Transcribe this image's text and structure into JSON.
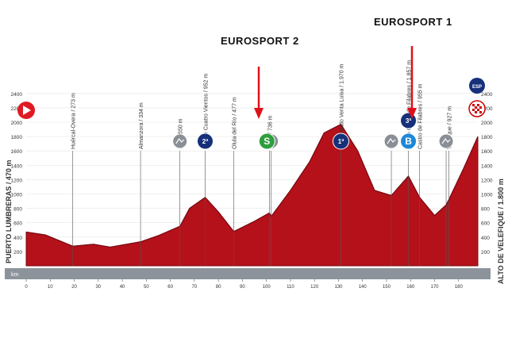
{
  "start": {
    "name": "PUERTO LUMBRERAS / 470 m"
  },
  "finish": {
    "name": "ALTO DE VELEFIQUE / 1.800 m"
  },
  "distance_axis": {
    "unit_label": "km",
    "ticks": [
      "0",
      "10",
      "20",
      "30",
      "40",
      "50",
      "60",
      "70",
      "80",
      "90",
      "100",
      "110",
      "120",
      "130",
      "140",
      "150",
      "160",
      "170",
      "180"
    ]
  },
  "altitude_axis": {
    "ticks": [
      "2400",
      "2200",
      "2000",
      "1800",
      "1600",
      "1400",
      "1200",
      "1000",
      "800",
      "600",
      "400",
      "200"
    ],
    "range_m": [
      0,
      2500
    ]
  },
  "waypoints": [
    {
      "km_label": "19,4",
      "name": "Huércal-Overa / 273 m"
    },
    {
      "km_label": "47,6",
      "name": "Almanzora / 334 m"
    },
    {
      "km_label": "64",
      "name": "Lijar / 550 m"
    },
    {
      "km_label": "74,5",
      "name": "Alto de Cuatro Vientos / 952 m"
    },
    {
      "km_label": "86,4",
      "name": "Olula del Río / 477 m"
    },
    {
      "km_label": "101,2",
      "name": "Tíjola / 736 m"
    },
    {
      "km_label": "102",
      "name": "688 m"
    },
    {
      "km_label": "131",
      "name": "Alto Collado Venta Luisa / 1.970 m"
    },
    {
      "km_label": "152",
      "name": "978 m"
    },
    {
      "km_label": "159,1",
      "name": "Alto de Castro de Filabres / 1.857 m"
    },
    {
      "km_label": "163,7",
      "name": "Castro de Filabres / 955 m"
    },
    {
      "km_label": "174,8",
      "name": "848 m"
    },
    {
      "km_label": "176",
      "name": "Velefique / 927 m"
    },
    {
      "km_label": "188",
      "name": ""
    }
  ],
  "badges": {
    "cat2": "2ª",
    "cat1": "1ª",
    "cat3": "3ª",
    "sprint": "S",
    "bonus": "B",
    "esp": "ESP"
  },
  "broadcast": {
    "eurosport2": "EUROSPORT 2",
    "eurosport1": "EUROSPORT 1"
  },
  "colors": {
    "profile": "#b5111b",
    "profile_dark": "#7a0a12",
    "badge_blue": "#16307a",
    "sprint_green": "#2e9e3e",
    "bonus_blue": "#1e88d8",
    "axis_bar": "#8c939b",
    "arrow": "#e0101a"
  },
  "chart_data": {
    "type": "area",
    "x": [
      0,
      8,
      19.4,
      28,
      35,
      47.6,
      55,
      64,
      68,
      74.5,
      80,
      86.4,
      95,
      101.2,
      102,
      110,
      118,
      124,
      131,
      138,
      145,
      152,
      159.1,
      163.7,
      170,
      174.8,
      176,
      182,
      188
    ],
    "values": [
      470,
      430,
      273,
      300,
      260,
      334,
      420,
      550,
      800,
      952,
      750,
      477,
      620,
      736,
      688,
      1050,
      1450,
      1850,
      1970,
      1600,
      1050,
      978,
      1250,
      955,
      700,
      848,
      927,
      1350,
      1800
    ],
    "xlabel": "km",
    "ylabel": "",
    "xlim": [
      0,
      188
    ],
    "ylim": [
      0,
      2500
    ]
  }
}
